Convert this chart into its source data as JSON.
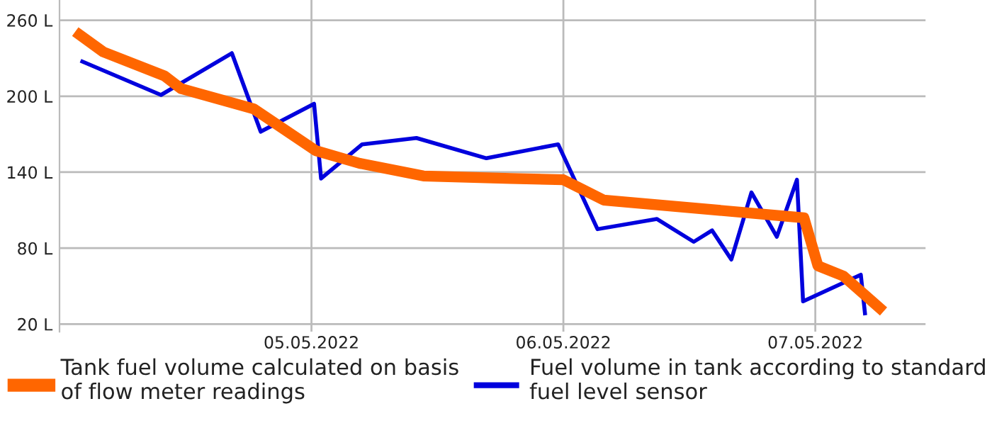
{
  "chart_data": {
    "type": "line",
    "xlim": [
      "2022-05-04T00:00",
      "2022-05-07T10:30"
    ],
    "xticks": [
      {
        "value": "2022-05-05",
        "label": "05.05.2022"
      },
      {
        "value": "2022-05-06",
        "label": "06.05.2022"
      },
      {
        "value": "2022-05-07",
        "label": "07.05.2022"
      }
    ],
    "ylim": [
      14,
      276
    ],
    "yticks": [
      {
        "value": 20,
        "label": "20 L"
      },
      {
        "value": 80,
        "label": "80 L"
      },
      {
        "value": 140,
        "label": "140 L"
      },
      {
        "value": 200,
        "label": "200 L"
      },
      {
        "value": 260,
        "label": "260 L"
      }
    ],
    "grid": true,
    "legend": "bottom",
    "marker": "none",
    "series": [
      {
        "name": "Tank fuel volume calculated on basis of flow meter readings",
        "color": "#ff6600",
        "x": [
          "2022-05-04T01:30",
          "2022-05-04T04:10",
          "2022-05-04T10:00",
          "2022-05-04T11:35",
          "2022-05-04T18:30",
          "2022-05-05T00:25",
          "2022-05-05T04:35",
          "2022-05-05T10:40",
          "2022-05-05T19:00",
          "2022-05-06T00:00",
          "2022-05-06T03:50",
          "2022-05-06T22:55",
          "2022-05-07T00:15",
          "2022-05-07T02:40",
          "2022-05-07T06:30"
        ],
        "values": [
          251,
          235,
          216,
          206,
          190,
          157,
          147,
          137,
          135,
          134,
          118,
          104,
          66,
          58,
          30
        ]
      },
      {
        "name": "Fuel volume in tank according to standard fuel level sensor",
        "color": "#0000dd",
        "x": [
          "2022-05-04T02:00",
          "2022-05-04T09:40",
          "2022-05-04T16:25",
          "2022-05-04T19:10",
          "2022-05-05T00:15",
          "2022-05-05T00:55",
          "2022-05-05T04:50",
          "2022-05-05T10:00",
          "2022-05-05T16:40",
          "2022-05-05T23:30",
          "2022-05-06T03:15",
          "2022-05-06T08:55",
          "2022-05-06T12:25",
          "2022-05-06T14:10",
          "2022-05-06T16:00",
          "2022-05-06T17:55",
          "2022-05-06T20:20",
          "2022-05-06T22:15",
          "2022-05-06T22:50",
          "2022-05-07T04:20",
          "2022-05-07T04:45"
        ],
        "values": [
          228,
          201,
          234,
          172,
          194,
          135,
          162,
          167,
          151,
          162,
          95,
          103,
          85,
          94,
          71,
          124,
          89,
          134,
          38,
          59,
          27
        ]
      }
    ]
  }
}
